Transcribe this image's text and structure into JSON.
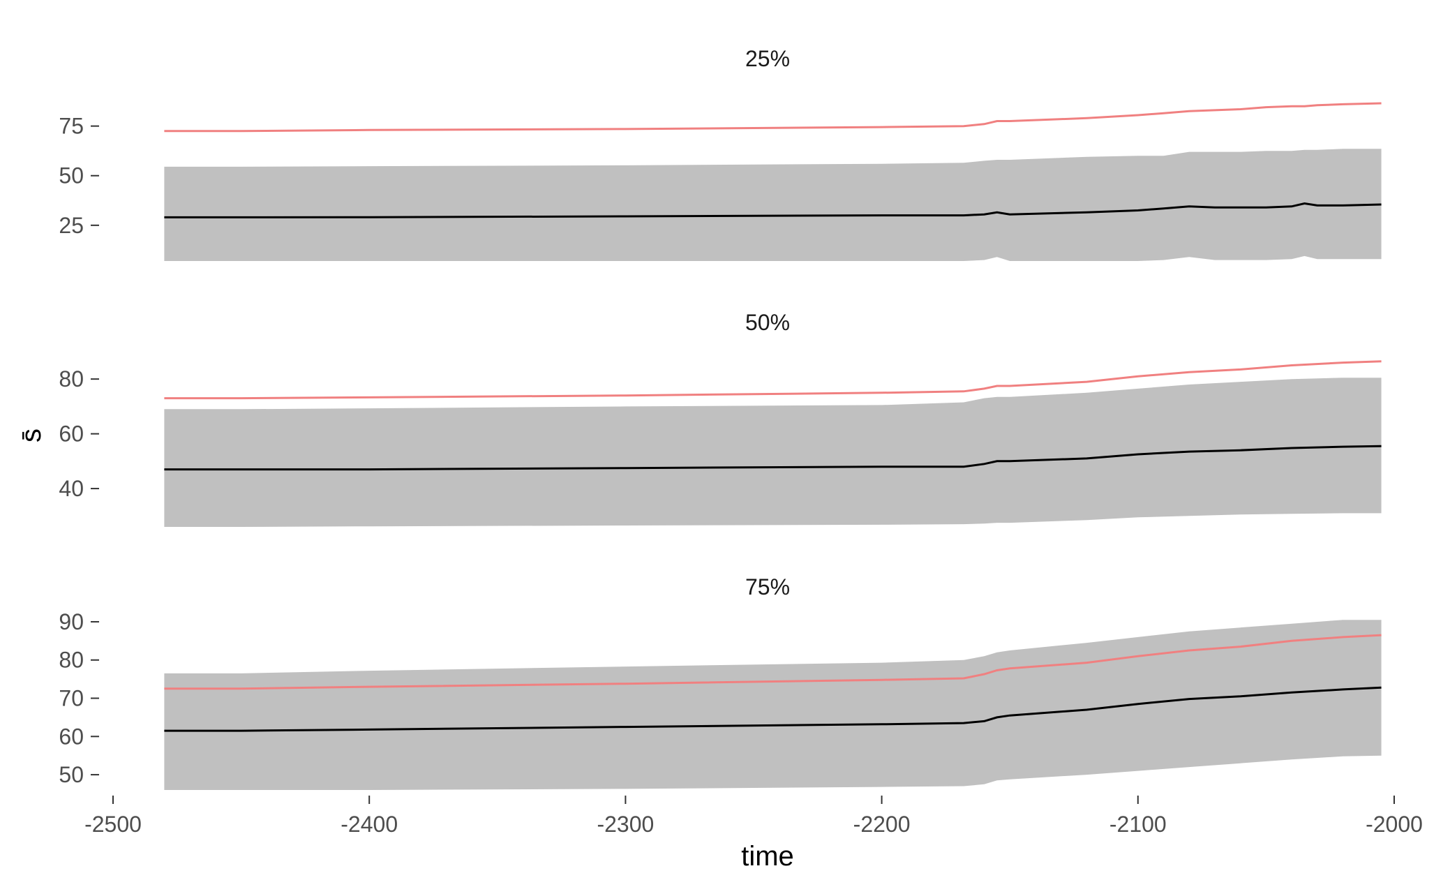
{
  "chart_data": {
    "type": "area",
    "xlabel": "time",
    "ylabel": "s̄",
    "xlim": [
      -2500,
      -2000
    ],
    "x_ticks": [
      -2500,
      -2400,
      -2300,
      -2200,
      -2100,
      -2000
    ],
    "x_tick_labels": [
      "-2500",
      "-2400",
      "-2300",
      "-2200",
      "-2100",
      "-2000"
    ],
    "grid": false,
    "colors": {
      "band": "#c0c0c0",
      "mean": "#000000",
      "reference": "#f08080"
    },
    "panels": [
      {
        "title": "25%",
        "ylim": [
          7,
          90
        ],
        "y_ticks": [
          25,
          50,
          75
        ],
        "y_tick_labels": [
          "25",
          "50",
          "75"
        ],
        "x": [
          -2480,
          -2450,
          -2400,
          -2300,
          -2200,
          -2168,
          -2160,
          -2155,
          -2150,
          -2120,
          -2100,
          -2090,
          -2080,
          -2070,
          -2060,
          -2050,
          -2040,
          -2035,
          -2030,
          -2020,
          -2005
        ],
        "mean": [
          29,
          29,
          29.1,
          29.5,
          30,
          30,
          30.5,
          31.5,
          30.5,
          31.5,
          32.5,
          33.5,
          34.5,
          34,
          34,
          34,
          34.5,
          36,
          35,
          35,
          35.5
        ],
        "lower": [
          7,
          7,
          7,
          7,
          7,
          7,
          7.5,
          9,
          7,
          7,
          7,
          7.5,
          9,
          7.5,
          7.5,
          7.5,
          8,
          9.5,
          8,
          8,
          8
        ],
        "upper": [
          54.5,
          54.5,
          54.8,
          55.2,
          56,
          56.5,
          57.5,
          58,
          58,
          59.5,
          60,
          60,
          62,
          62,
          62,
          62.5,
          62.5,
          63,
          63,
          63.5,
          63.5
        ],
        "reference": [
          72.5,
          72.5,
          73,
          73.5,
          74.5,
          75,
          76,
          77.5,
          77.5,
          79,
          80.5,
          81.5,
          82.5,
          83,
          83.5,
          84.5,
          85,
          85,
          85.5,
          86,
          86.5
        ]
      },
      {
        "title": "50%",
        "ylim": [
          26,
          91
        ],
        "y_ticks": [
          40,
          60,
          80
        ],
        "y_tick_labels": [
          "40",
          "60",
          "80"
        ],
        "x": [
          -2480,
          -2450,
          -2400,
          -2300,
          -2200,
          -2168,
          -2160,
          -2155,
          -2150,
          -2120,
          -2100,
          -2080,
          -2060,
          -2040,
          -2020,
          -2005
        ],
        "mean": [
          47,
          47,
          47,
          47.5,
          48,
          48,
          49,
          50,
          50,
          51,
          52.5,
          53.5,
          54,
          54.8,
          55.3,
          55.5
        ],
        "lower": [
          26,
          26,
          26.2,
          26.5,
          26.8,
          27,
          27.2,
          27.5,
          27.5,
          28.5,
          29.5,
          30,
          30.5,
          30.8,
          31,
          31
        ],
        "upper": [
          69,
          69,
          69.3,
          70,
          70.5,
          71.5,
          73,
          73.5,
          73.5,
          75,
          76.5,
          78,
          79,
          80,
          80.5,
          80.5
        ],
        "reference": [
          73,
          73,
          73.3,
          74,
          75,
          75.5,
          76.5,
          77.5,
          77.5,
          79,
          81,
          82.5,
          83.5,
          85,
          86,
          86.5
        ]
      },
      {
        "title": "75%",
        "ylim": [
          46,
          92
        ],
        "y_ticks": [
          50,
          60,
          70,
          80,
          90
        ],
        "y_tick_labels": [
          "50",
          "60",
          "70",
          "80",
          "90"
        ],
        "x": [
          -2480,
          -2450,
          -2400,
          -2300,
          -2200,
          -2168,
          -2160,
          -2155,
          -2150,
          -2120,
          -2100,
          -2080,
          -2060,
          -2040,
          -2020,
          -2005
        ],
        "mean": [
          61.5,
          61.5,
          61.8,
          62.5,
          63.2,
          63.5,
          64,
          65,
          65.5,
          67,
          68.5,
          69.8,
          70.5,
          71.5,
          72.3,
          72.8
        ],
        "lower": [
          46,
          46,
          46,
          46.3,
          46.8,
          47,
          47.5,
          48.5,
          48.8,
          50,
          51,
          52,
          53,
          54,
          54.8,
          55
        ],
        "upper": [
          76.5,
          76.5,
          77.2,
          78.3,
          79.3,
          80,
          81,
          82,
          82.5,
          84.5,
          86,
          87.5,
          88.5,
          89.5,
          90.5,
          90.5
        ],
        "reference": [
          72.5,
          72.5,
          73,
          73.8,
          74.8,
          75.2,
          76.3,
          77.3,
          77.8,
          79.3,
          81,
          82.5,
          83.5,
          85,
          86,
          86.5
        ]
      }
    ]
  }
}
